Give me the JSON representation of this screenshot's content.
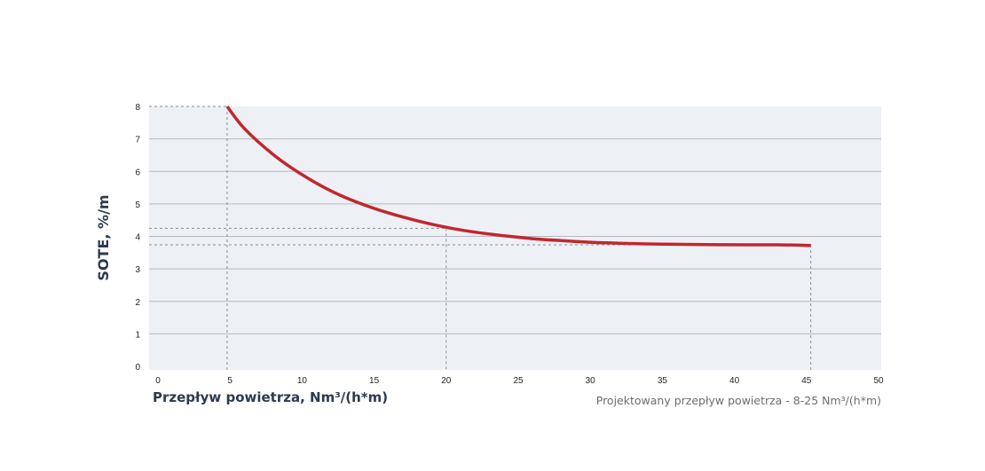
{
  "chart_data": {
    "type": "line",
    "title": "",
    "xlabel": "Przepływ powietrza, Nm³/(h*m)",
    "ylabel": "SOTE, %/m",
    "xlim": [
      0,
      50
    ],
    "ylim": [
      0,
      8
    ],
    "x_ticks": [
      "0",
      "5",
      "10",
      "15",
      "20",
      "25",
      "30",
      "35",
      "40",
      "45",
      "50"
    ],
    "y_ticks": [
      "0",
      "1",
      "2",
      "3",
      "4",
      "5",
      "6",
      "7",
      "8"
    ],
    "grid": "horizontal",
    "note": "Projektowany przepływ powietrza - 8-25 Nm³/(h*m)",
    "series": [
      {
        "color": "#c1272d",
        "x": [
          4.8,
          6,
          8,
          10,
          12,
          14,
          16,
          18,
          20,
          22,
          24,
          26,
          28,
          30,
          32,
          35,
          38,
          41,
          43,
          45.3
        ],
        "y": [
          8.0,
          7.32,
          6.52,
          5.9,
          5.4,
          5.02,
          4.72,
          4.48,
          4.28,
          4.13,
          4.02,
          3.93,
          3.87,
          3.82,
          3.79,
          3.76,
          3.75,
          3.74,
          3.74,
          3.72
        ]
      }
    ],
    "reference_lines": [
      {
        "x": 4.8,
        "y": 8.0
      },
      {
        "x": 20,
        "y": 4.25
      },
      {
        "x": 45.3,
        "y": 3.74
      }
    ],
    "colors": {
      "plot_background": "#edf1f5",
      "grid": "#b5b8bc",
      "reference": "#8e8e8e",
      "label": "#2d3a4d"
    }
  }
}
